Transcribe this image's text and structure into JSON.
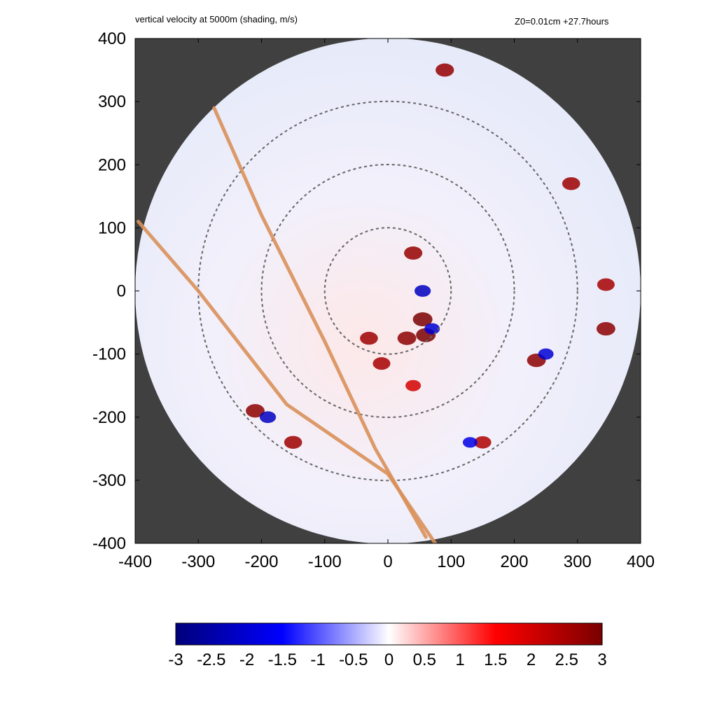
{
  "chart_data": {
    "type": "heatmap",
    "title": "vertical velocity at 5000m (shading, m/s)",
    "subtitle": "Z0=0.01cm  +27.7hours",
    "xlabel": "",
    "ylabel": "",
    "xlim": [
      -400,
      400
    ],
    "ylim": [
      -400,
      400
    ],
    "x_ticks": [
      "-400",
      "-300",
      "-200",
      "-100",
      "0",
      "100",
      "200",
      "300",
      "400"
    ],
    "y_ticks": [
      "400",
      "300",
      "200",
      "100",
      "0",
      "-100",
      "-200",
      "-300",
      "-400"
    ],
    "domain_radius": 400,
    "range_rings_radius": [
      100,
      200,
      300
    ],
    "tracks": [
      {
        "points": [
          [
            -275,
            290
          ],
          [
            -200,
            120
          ],
          [
            -100,
            -80
          ],
          [
            -20,
            -250
          ],
          [
            60,
            -390
          ]
        ]
      },
      {
        "points": [
          [
            -395,
            110
          ],
          [
            -300,
            0
          ],
          [
            -160,
            -180
          ],
          [
            0,
            -290
          ],
          [
            75,
            -400
          ]
        ]
      }
    ],
    "colorbar": {
      "min": -3,
      "max": 3,
      "tick_labels": [
        "-3",
        "-2.5",
        "-2",
        "-1.5",
        "-1",
        "-0.5",
        "0",
        "0.5",
        "1",
        "1.5",
        "2",
        "2.5",
        "3"
      ],
      "colors": [
        "#00007a",
        "#0000ff",
        "#ffffff",
        "#ff0000",
        "#7a0000"
      ]
    },
    "strong_updrafts": [
      {
        "x": 55,
        "y": -45,
        "value": 3
      },
      {
        "x": 60,
        "y": -70,
        "value": 3
      },
      {
        "x": 30,
        "y": -75,
        "value": 2.8
      },
      {
        "x": -30,
        "y": -75,
        "value": 2.6
      },
      {
        "x": -10,
        "y": -115,
        "value": 2.5
      },
      {
        "x": 40,
        "y": 60,
        "value": 2.7
      },
      {
        "x": -210,
        "y": -190,
        "value": 2.8
      },
      {
        "x": -150,
        "y": -240,
        "value": 2.6
      },
      {
        "x": 235,
        "y": -110,
        "value": 2.8
      },
      {
        "x": 90,
        "y": 350,
        "value": 2.7
      },
      {
        "x": 290,
        "y": 170,
        "value": 2.6
      },
      {
        "x": 345,
        "y": -60,
        "value": 2.8
      },
      {
        "x": 345,
        "y": 10,
        "value": 2.5
      },
      {
        "x": 150,
        "y": -240,
        "value": 2.4
      },
      {
        "x": 40,
        "y": -150,
        "value": 2.0
      }
    ],
    "strong_downdrafts": [
      {
        "x": 55,
        "y": 0,
        "value": -2.2
      },
      {
        "x": 70,
        "y": -60,
        "value": -2.0
      },
      {
        "x": -190,
        "y": -200,
        "value": -2.2
      },
      {
        "x": 250,
        "y": -100,
        "value": -2.0
      },
      {
        "x": 130,
        "y": -240,
        "value": -1.8
      }
    ]
  }
}
